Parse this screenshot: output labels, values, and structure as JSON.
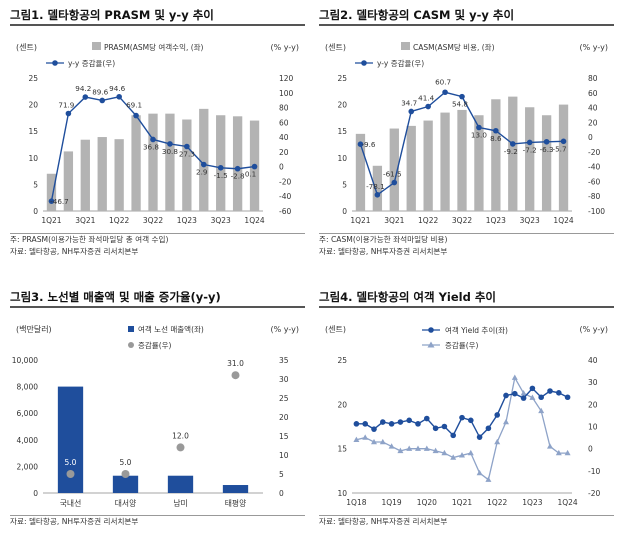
{
  "figures": [
    {
      "id": "fig1",
      "title": "그림1. 델타항공의 PRASM 및 y-y 추이",
      "left_unit": "(센트)",
      "right_unit": "(% y-y)",
      "legend_bar": "PRASM(ASM당 여객수익, (좌)",
      "legend_line": "y-y 증감율(우)",
      "notes": [
        "주: PRASM(이용가능한 좌석마일당 총 여객 수입)",
        "자료: 델타항공, NH투자증권 리서치본부"
      ]
    },
    {
      "id": "fig2",
      "title": "그림2. 델타항공의 CASM 및 y-y 추이",
      "left_unit": "(센트)",
      "right_unit": "(% y-y)",
      "legend_bar": "CASM(ASM당 비용, (좌)",
      "legend_line": "y-y 증감율(우)",
      "notes": [
        "주: CASM(이용가능한 좌석마일당 비용)",
        "자료: 델타항공, NH투자증권 리서치본부"
      ]
    },
    {
      "id": "fig3",
      "title": "그림3. 노선별 매출액 및 매출 증가율(y-y)",
      "left_unit": "(백만달러)",
      "right_unit": "(% y-y)",
      "legend_bar": "여객 노선 매출액(좌)",
      "legend_line": "증감률(우)",
      "notes": [
        "자료: 델타항공, NH투자증권 리서치본부"
      ]
    },
    {
      "id": "fig4",
      "title": "그림4. 델타항공의 여객 Yield 추이",
      "left_unit": "(센트)",
      "right_unit": "(% y-y)",
      "legend_bar": "여객 Yield 추이(좌)",
      "legend_line": "증감률(우)",
      "notes": [
        "자료: 델타항공, NH투자증권 리서치본부"
      ]
    }
  ],
  "chart_data": [
    {
      "type": "bar",
      "id": "fig1",
      "x": [
        "1Q21",
        "2Q21",
        "3Q21",
        "4Q21",
        "1Q22",
        "2Q22",
        "3Q22",
        "4Q22",
        "1Q23",
        "2Q23",
        "3Q23",
        "4Q23",
        "1Q24"
      ],
      "xticks": [
        "1Q21",
        "3Q21",
        "1Q22",
        "3Q22",
        "1Q23",
        "3Q23",
        "1Q24"
      ],
      "series": [
        {
          "name": "PRASM(ASM당 여객수익, (좌)",
          "axis": "left",
          "values": [
            7.0,
            11.2,
            13.4,
            13.9,
            13.5,
            18.0,
            18.3,
            18.3,
            17.2,
            19.2,
            18.0,
            17.8,
            17.0
          ],
          "color": "#b3b3b3"
        },
        {
          "name": "y-y 증감율(우)",
          "axis": "right",
          "values": [
            -46.7,
            71.9,
            94.2,
            89.6,
            94.6,
            69.1,
            36.8,
            30.8,
            27.3,
            2.9,
            -1.5,
            -2.8,
            0.1
          ],
          "labels": [
            "-46.7",
            "71.9",
            "94.2",
            "89.6",
            "94.6",
            "69.1",
            "36.8",
            "30.8",
            "27.3",
            "2.9",
            "-1.5",
            "-2.8",
            "0.1"
          ],
          "color": "#1f4e9c"
        }
      ],
      "ylim_left": [
        0,
        25
      ],
      "ylim_right": [
        -60,
        120
      ],
      "yticks_left": [
        0,
        5,
        10,
        15,
        20,
        25
      ],
      "yticks_right": [
        -60,
        -40,
        -20,
        0,
        20,
        40,
        60,
        80,
        100,
        120
      ]
    },
    {
      "type": "bar",
      "id": "fig2",
      "x": [
        "1Q21",
        "2Q21",
        "3Q21",
        "4Q21",
        "1Q22",
        "2Q22",
        "3Q22",
        "4Q22",
        "1Q23",
        "2Q23",
        "3Q23",
        "4Q23",
        "1Q24"
      ],
      "xticks": [
        "1Q21",
        "3Q21",
        "1Q22",
        "3Q22",
        "1Q23",
        "3Q23",
        "1Q24"
      ],
      "series": [
        {
          "name": "CASM(ASM당 비용, (좌)",
          "axis": "left",
          "values": [
            14.5,
            8.5,
            15.5,
            16.0,
            17.0,
            18.5,
            19.0,
            18.0,
            21.0,
            21.5,
            19.5,
            18.0,
            20.0
          ],
          "color": "#b3b3b3"
        },
        {
          "name": "y-y 증감율(우)",
          "axis": "right",
          "values": [
            -9.6,
            -78.1,
            -61.5,
            34.7,
            41.4,
            60.7,
            54.8,
            13.0,
            8.6,
            -9.2,
            -7.2,
            -6.3,
            -5.7
          ],
          "labels": [
            "-9.6",
            "-78.1",
            "-61.5",
            "34.7",
            "41.4",
            "60.7",
            "54.8",
            "13.0",
            "8.6",
            "-9.2",
            "-7.2",
            "-6.3",
            "-5.7"
          ],
          "color": "#1f4e9c"
        }
      ],
      "ylim_left": [
        0,
        25
      ],
      "ylim_right": [
        -100,
        80
      ],
      "yticks_left": [
        0,
        5,
        10,
        15,
        20,
        25
      ],
      "yticks_right": [
        -100,
        -80,
        -60,
        -40,
        -20,
        0,
        20,
        40,
        60,
        80
      ]
    },
    {
      "type": "bar",
      "id": "fig3",
      "categories": [
        "국내선",
        "대서양",
        "남미",
        "태평양"
      ],
      "series": [
        {
          "name": "여객 노선 매출액(좌)",
          "axis": "left",
          "values": [
            8000,
            1300,
            1300,
            600
          ],
          "color": "#1f4e9c"
        },
        {
          "name": "증감률(우)",
          "axis": "right",
          "values": [
            5.0,
            5.0,
            12.0,
            31.0
          ],
          "labels": [
            "5.0",
            "5.0",
            "12.0",
            "31.0"
          ],
          "color": "#999999"
        }
      ],
      "ylim_left": [
        0,
        10000
      ],
      "ylim_right": [
        0,
        35
      ],
      "yticks_left": [
        "0",
        "2,000",
        "4,000",
        "6,000",
        "8,000",
        "10,000"
      ],
      "yticks_right": [
        0,
        5,
        10,
        15,
        20,
        25,
        30,
        35
      ]
    },
    {
      "type": "line",
      "id": "fig4",
      "x": [
        "1Q18",
        "2Q18",
        "3Q18",
        "4Q18",
        "1Q19",
        "2Q19",
        "3Q19",
        "4Q19",
        "1Q20",
        "2Q20",
        "3Q20",
        "4Q20",
        "1Q21",
        "2Q21",
        "3Q21",
        "4Q21",
        "1Q22",
        "2Q22",
        "3Q22",
        "4Q22",
        "1Q23",
        "2Q23",
        "3Q23",
        "4Q23",
        "1Q24"
      ],
      "xticks": [
        "1Q18",
        "1Q19",
        "1Q20",
        "1Q21",
        "1Q22",
        "1Q23",
        "1Q24"
      ],
      "series": [
        {
          "name": "여객 Yield 추이(좌)",
          "axis": "left",
          "values": [
            17.8,
            17.8,
            17.2,
            18.0,
            17.8,
            18.0,
            18.2,
            17.8,
            18.4,
            17.3,
            17.5,
            16.5,
            18.5,
            18.2,
            16.3,
            17.3,
            18.8,
            21.0,
            21.2,
            20.7,
            21.8,
            20.8,
            21.5,
            21.3,
            20.8
          ],
          "color": "#1f4e9c"
        },
        {
          "name": "증감률(우)",
          "axis": "right",
          "values": [
            4,
            5,
            3,
            3,
            1,
            -1,
            0,
            0,
            0,
            -1,
            -2,
            -4,
            -3,
            -2,
            -11,
            -14,
            3,
            12,
            32,
            25,
            23,
            17,
            1,
            -2,
            -2
          ],
          "color": "#8ea3c8"
        }
      ],
      "ylim_left": [
        10,
        25
      ],
      "ylim_right": [
        -20,
        40
      ],
      "yticks_left": [
        10,
        15,
        20,
        25
      ],
      "yticks_right": [
        -20,
        -10,
        0,
        10,
        20,
        30,
        40
      ]
    }
  ]
}
